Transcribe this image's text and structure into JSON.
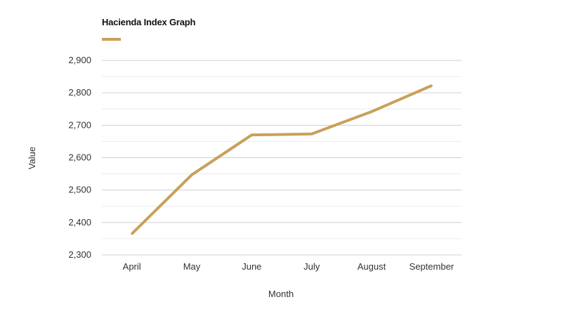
{
  "chart_data": {
    "type": "line",
    "title": "Hacienda Index Graph",
    "xlabel": "Month",
    "ylabel": "Value",
    "categories": [
      "April",
      "May",
      "June",
      "July",
      "August",
      "September"
    ],
    "series": [
      {
        "name": "",
        "color": "#c9a05a",
        "values": [
          2365,
          2547,
          2670,
          2673,
          2742,
          2822
        ]
      }
    ],
    "ylim": [
      2300,
      2900
    ],
    "yticks": [
      2300,
      2400,
      2500,
      2600,
      2700,
      2800,
      2900
    ],
    "ytick_labels": [
      "2,300",
      "2,400",
      "2,500",
      "2,600",
      "2,700",
      "2,800",
      "2,900"
    ],
    "grid": true,
    "legend": "top-left"
  }
}
